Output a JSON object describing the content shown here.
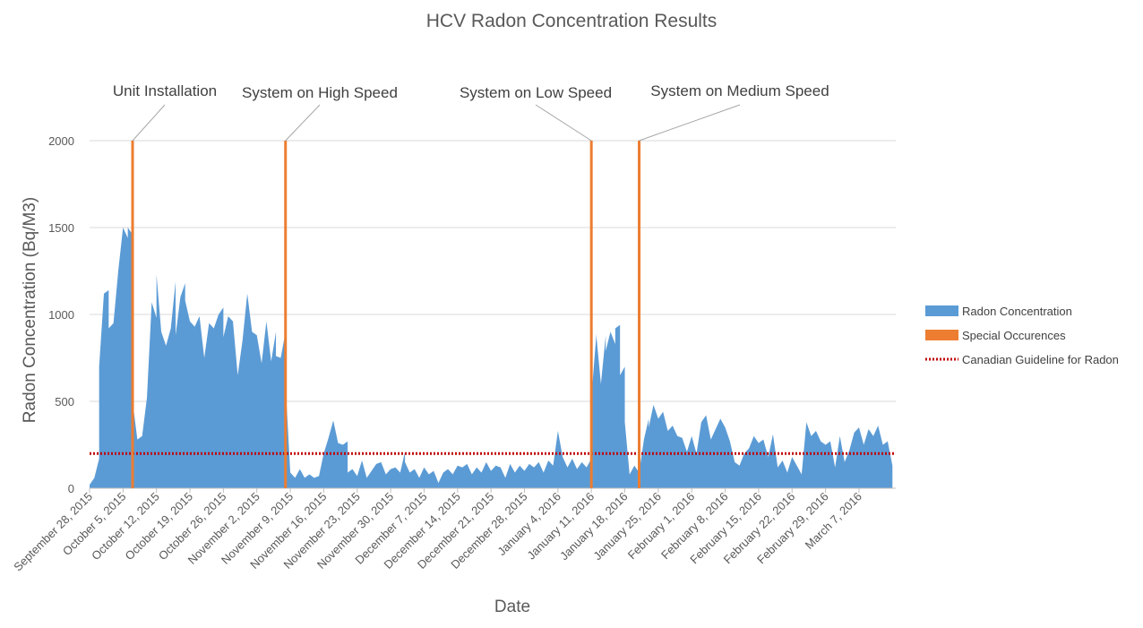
{
  "chart_data": {
    "type": "area",
    "title": "HCV Radon Concentration Results",
    "xlabel": "Date",
    "ylabel": "Radon Concentration (Bq/M3)",
    "ylim": [
      0,
      2000
    ],
    "yticks": [
      0,
      500,
      1000,
      1500,
      2000
    ],
    "grid": true,
    "x_start": "2015-09-28",
    "x_end": "2016-03-14",
    "xtick_labels": [
      "September 28, 2015",
      "October 5, 2015",
      "October 12, 2015",
      "October 19, 2015",
      "October 26, 2015",
      "November 2, 2015",
      "November 9, 2015",
      "November 16, 2015",
      "November 23, 2015",
      "November 30, 2015",
      "December 7, 2015",
      "December 14, 2015",
      "December 21, 2015",
      "December 28, 2015",
      "January 4, 2016",
      "January 11, 2016",
      "January 18, 2016",
      "January 25, 2016",
      "February 1, 2016",
      "February 8, 2016",
      "February 15, 2016",
      "February 22, 2016",
      "February 29, 2016",
      "March 7, 2016"
    ],
    "series": [
      {
        "name": "Radon Concentration",
        "color": "#5b9bd5",
        "points": [
          [
            "2015-09-28",
            230
          ],
          [
            "2015-09-28",
            20
          ],
          [
            "2015-09-29",
            60
          ],
          [
            "2015-09-30",
            170
          ],
          [
            "2015-09-30",
            700
          ],
          [
            "2015-10-01",
            1120
          ],
          [
            "2015-10-02",
            1140
          ],
          [
            "2015-10-02",
            920
          ],
          [
            "2015-10-03",
            950
          ],
          [
            "2015-10-04",
            1250
          ],
          [
            "2015-10-05",
            1500
          ],
          [
            "2015-10-06",
            1440
          ],
          [
            "2015-10-06",
            1500
          ],
          [
            "2015-10-07",
            1460
          ],
          [
            "2015-10-07",
            500
          ],
          [
            "2015-10-08",
            280
          ],
          [
            "2015-10-09",
            300
          ],
          [
            "2015-10-10",
            520
          ],
          [
            "2015-10-11",
            1070
          ],
          [
            "2015-10-12",
            980
          ],
          [
            "2015-10-12",
            1230
          ],
          [
            "2015-10-13",
            900
          ],
          [
            "2015-10-14",
            820
          ],
          [
            "2015-10-15",
            920
          ],
          [
            "2015-10-16",
            1190
          ],
          [
            "2015-10-16",
            880
          ],
          [
            "2015-10-17",
            1100
          ],
          [
            "2015-10-18",
            1180
          ],
          [
            "2015-10-18",
            1080
          ],
          [
            "2015-10-19",
            960
          ],
          [
            "2015-10-20",
            930
          ],
          [
            "2015-10-21",
            990
          ],
          [
            "2015-10-22",
            750
          ],
          [
            "2015-10-23",
            950
          ],
          [
            "2015-10-24",
            920
          ],
          [
            "2015-10-25",
            1000
          ],
          [
            "2015-10-26",
            1040
          ],
          [
            "2015-10-26",
            870
          ],
          [
            "2015-10-27",
            990
          ],
          [
            "2015-10-28",
            960
          ],
          [
            "2015-10-29",
            650
          ],
          [
            "2015-10-30",
            850
          ],
          [
            "2015-10-31",
            1120
          ],
          [
            "2015-11-01",
            900
          ],
          [
            "2015-11-02",
            880
          ],
          [
            "2015-11-03",
            720
          ],
          [
            "2015-11-04",
            960
          ],
          [
            "2015-11-05",
            730
          ],
          [
            "2015-11-06",
            900
          ],
          [
            "2015-11-06",
            760
          ],
          [
            "2015-11-07",
            750
          ],
          [
            "2015-11-08",
            900
          ],
          [
            "2015-11-08",
            600
          ],
          [
            "2015-11-09",
            90
          ],
          [
            "2015-11-10",
            60
          ],
          [
            "2015-11-11",
            110
          ],
          [
            "2015-11-12",
            60
          ],
          [
            "2015-11-13",
            80
          ],
          [
            "2015-11-14",
            60
          ],
          [
            "2015-11-15",
            70
          ],
          [
            "2015-11-16",
            200
          ],
          [
            "2015-11-17",
            290
          ],
          [
            "2015-11-18",
            390
          ],
          [
            "2015-11-19",
            260
          ],
          [
            "2015-11-20",
            250
          ],
          [
            "2015-11-21",
            270
          ],
          [
            "2015-11-21",
            90
          ],
          [
            "2015-11-22",
            110
          ],
          [
            "2015-11-23",
            70
          ],
          [
            "2015-11-24",
            160
          ],
          [
            "2015-11-25",
            60
          ],
          [
            "2015-11-26",
            100
          ],
          [
            "2015-11-27",
            140
          ],
          [
            "2015-11-28",
            150
          ],
          [
            "2015-11-29",
            80
          ],
          [
            "2015-11-30",
            110
          ],
          [
            "2015-12-01",
            120
          ],
          [
            "2015-12-02",
            90
          ],
          [
            "2015-12-03",
            210
          ],
          [
            "2015-12-03",
            150
          ],
          [
            "2015-12-04",
            90
          ],
          [
            "2015-12-05",
            110
          ],
          [
            "2015-12-06",
            60
          ],
          [
            "2015-12-07",
            120
          ],
          [
            "2015-12-08",
            80
          ],
          [
            "2015-12-09",
            100
          ],
          [
            "2015-12-10",
            30
          ],
          [
            "2015-12-11",
            90
          ],
          [
            "2015-12-12",
            110
          ],
          [
            "2015-12-13",
            80
          ],
          [
            "2015-12-14",
            130
          ],
          [
            "2015-12-15",
            120
          ],
          [
            "2015-12-16",
            140
          ],
          [
            "2015-12-17",
            80
          ],
          [
            "2015-12-18",
            120
          ],
          [
            "2015-12-19",
            90
          ],
          [
            "2015-12-20",
            150
          ],
          [
            "2015-12-21",
            100
          ],
          [
            "2015-12-22",
            130
          ],
          [
            "2015-12-23",
            120
          ],
          [
            "2015-12-24",
            60
          ],
          [
            "2015-12-25",
            140
          ],
          [
            "2015-12-26",
            90
          ],
          [
            "2015-12-27",
            130
          ],
          [
            "2015-12-28",
            100
          ],
          [
            "2015-12-29",
            140
          ],
          [
            "2015-12-30",
            120
          ],
          [
            "2015-12-31",
            150
          ],
          [
            "2016-01-01",
            90
          ],
          [
            "2016-01-02",
            160
          ],
          [
            "2016-01-03",
            130
          ],
          [
            "2016-01-04",
            330
          ],
          [
            "2016-01-05",
            180
          ],
          [
            "2016-01-06",
            120
          ],
          [
            "2016-01-07",
            170
          ],
          [
            "2016-01-08",
            110
          ],
          [
            "2016-01-09",
            150
          ],
          [
            "2016-01-10",
            120
          ],
          [
            "2016-01-11",
            170
          ],
          [
            "2016-01-11",
            520
          ],
          [
            "2016-01-12",
            870
          ],
          [
            "2016-01-12",
            890
          ],
          [
            "2016-01-13",
            600
          ],
          [
            "2016-01-14",
            880
          ],
          [
            "2016-01-14",
            790
          ],
          [
            "2016-01-15",
            900
          ],
          [
            "2016-01-16",
            830
          ],
          [
            "2016-01-16",
            920
          ],
          [
            "2016-01-17",
            940
          ],
          [
            "2016-01-17",
            650
          ],
          [
            "2016-01-18",
            700
          ],
          [
            "2016-01-18",
            380
          ],
          [
            "2016-01-19",
            80
          ],
          [
            "2016-01-20",
            130
          ],
          [
            "2016-01-21",
            90
          ],
          [
            "2016-01-22",
            280
          ],
          [
            "2016-01-23",
            400
          ],
          [
            "2016-01-23",
            350
          ],
          [
            "2016-01-24",
            480
          ],
          [
            "2016-01-25",
            400
          ],
          [
            "2016-01-26",
            440
          ],
          [
            "2016-01-27",
            330
          ],
          [
            "2016-01-28",
            360
          ],
          [
            "2016-01-29",
            300
          ],
          [
            "2016-01-30",
            290
          ],
          [
            "2016-01-31",
            210
          ],
          [
            "2016-02-01",
            300
          ],
          [
            "2016-02-02",
            200
          ],
          [
            "2016-02-03",
            380
          ],
          [
            "2016-02-04",
            420
          ],
          [
            "2016-02-05",
            280
          ],
          [
            "2016-02-06",
            340
          ],
          [
            "2016-02-07",
            400
          ],
          [
            "2016-02-08",
            350
          ],
          [
            "2016-02-09",
            270
          ],
          [
            "2016-02-10",
            150
          ],
          [
            "2016-02-11",
            130
          ],
          [
            "2016-02-12",
            200
          ],
          [
            "2016-02-13",
            230
          ],
          [
            "2016-02-14",
            300
          ],
          [
            "2016-02-15",
            260
          ],
          [
            "2016-02-16",
            280
          ],
          [
            "2016-02-17",
            180
          ],
          [
            "2016-02-18",
            310
          ],
          [
            "2016-02-19",
            120
          ],
          [
            "2016-02-20",
            160
          ],
          [
            "2016-02-21",
            90
          ],
          [
            "2016-02-22",
            180
          ],
          [
            "2016-02-23",
            130
          ],
          [
            "2016-02-24",
            80
          ],
          [
            "2016-02-25",
            380
          ],
          [
            "2016-02-26",
            300
          ],
          [
            "2016-02-27",
            330
          ],
          [
            "2016-02-28",
            270
          ],
          [
            "2016-02-29",
            250
          ],
          [
            "2016-03-01",
            270
          ],
          [
            "2016-03-02",
            120
          ],
          [
            "2016-03-03",
            300
          ],
          [
            "2016-03-04",
            150
          ],
          [
            "2016-03-05",
            220
          ],
          [
            "2016-03-06",
            320
          ],
          [
            "2016-03-07",
            350
          ],
          [
            "2016-03-08",
            250
          ],
          [
            "2016-03-09",
            340
          ],
          [
            "2016-03-10",
            300
          ],
          [
            "2016-03-11",
            360
          ],
          [
            "2016-03-12",
            250
          ],
          [
            "2016-03-13",
            270
          ],
          [
            "2016-03-14",
            130
          ]
        ]
      },
      {
        "name": "Special Occurences",
        "color": "#ed7d31",
        "events": [
          {
            "date": "2015-10-07",
            "value": 2000,
            "label": "Unit Installation"
          },
          {
            "date": "2015-11-08",
            "value": 2000,
            "label": "System on High Speed"
          },
          {
            "date": "2016-01-11",
            "value": 2000,
            "label": "System on Low Speed"
          },
          {
            "date": "2016-01-21",
            "value": 2000,
            "label": "System on Medium Speed"
          }
        ]
      },
      {
        "name": "Canadian Guideline for Radon",
        "color": "#c00000",
        "value": 200
      }
    ],
    "legend_position": "right"
  }
}
